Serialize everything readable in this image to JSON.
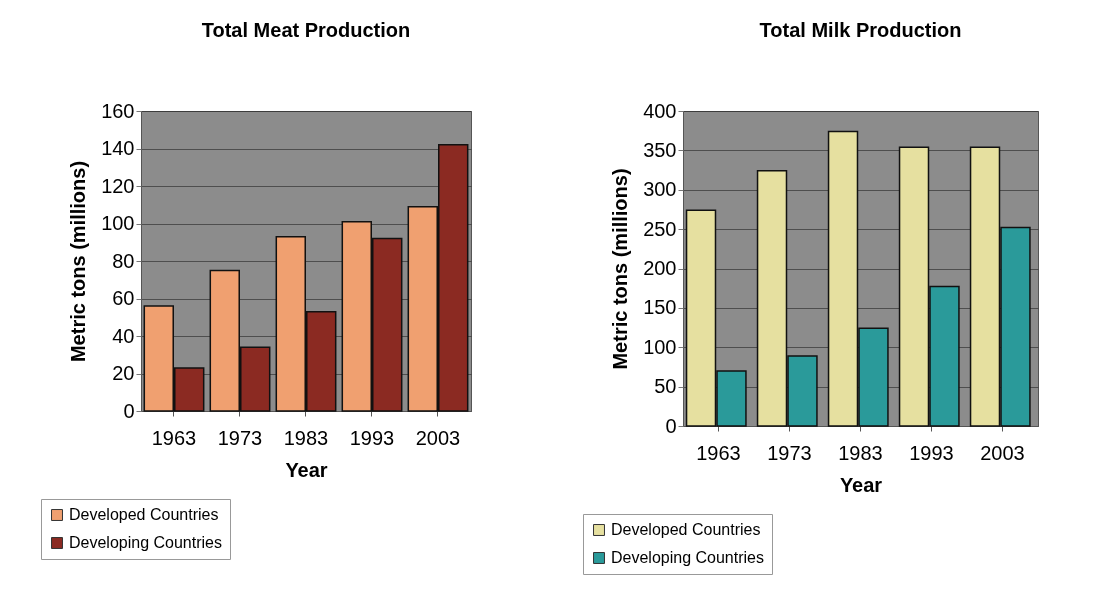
{
  "chart_data": [
    {
      "type": "bar",
      "title": "Total Meat Production",
      "xlabel": "Year",
      "ylabel": "Metric tons (millions)",
      "categories": [
        "1963",
        "1973",
        "1983",
        "1993",
        "2003"
      ],
      "series": [
        {
          "name": "Developed Countries",
          "color": "#f0a070",
          "values": [
            56,
            75,
            93,
            101,
            109
          ]
        },
        {
          "name": "Developing Countries",
          "color": "#8b2a22",
          "values": [
            23,
            34,
            53,
            92,
            142
          ]
        }
      ],
      "ylim": [
        0,
        160
      ],
      "yticks": [
        0,
        20,
        40,
        60,
        80,
        100,
        120,
        140,
        160
      ],
      "grid": "y",
      "legend": "bottom left"
    },
    {
      "type": "bar",
      "title": "Total Milk Production",
      "xlabel": "Year",
      "ylabel": "Metric tons (millions)",
      "categories": [
        "1963",
        "1973",
        "1983",
        "1993",
        "2003"
      ],
      "series": [
        {
          "name": "Developed Countries",
          "color": "#e6e0a0",
          "values": [
            274,
            324,
            374,
            354,
            354
          ]
        },
        {
          "name": "Developing Countries",
          "color": "#2a9a9a",
          "values": [
            70,
            89,
            124,
            177,
            252
          ]
        }
      ],
      "ylim": [
        0,
        400
      ],
      "yticks": [
        0,
        50,
        100,
        150,
        200,
        250,
        300,
        350,
        400
      ],
      "grid": "y",
      "legend": "bottom left"
    }
  ]
}
